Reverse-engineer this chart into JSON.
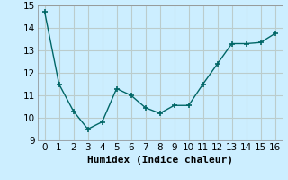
{
  "x": [
    0,
    1,
    2,
    3,
    4,
    5,
    6,
    7,
    8,
    9,
    10,
    11,
    12,
    13,
    14,
    15,
    16
  ],
  "y": [
    14.72,
    11.5,
    10.3,
    9.5,
    9.82,
    11.3,
    11.0,
    10.45,
    10.2,
    10.55,
    10.55,
    11.5,
    12.4,
    13.3,
    13.3,
    13.35,
    13.75
  ],
  "line_color": "#006666",
  "marker_color": "#006666",
  "xlabel": "Humidex (Indice chaleur)",
  "xlim": [
    -0.5,
    16.5
  ],
  "ylim": [
    9.0,
    15.0
  ],
  "yticks": [
    9,
    10,
    11,
    12,
    13,
    14,
    15
  ],
  "xticks": [
    0,
    1,
    2,
    3,
    4,
    5,
    6,
    7,
    8,
    9,
    10,
    11,
    12,
    13,
    14,
    15,
    16
  ],
  "bg_color": "#cceeff",
  "grid_color": "#bbcccc",
  "xlabel_fontsize": 8,
  "tick_fontsize": 7.5
}
